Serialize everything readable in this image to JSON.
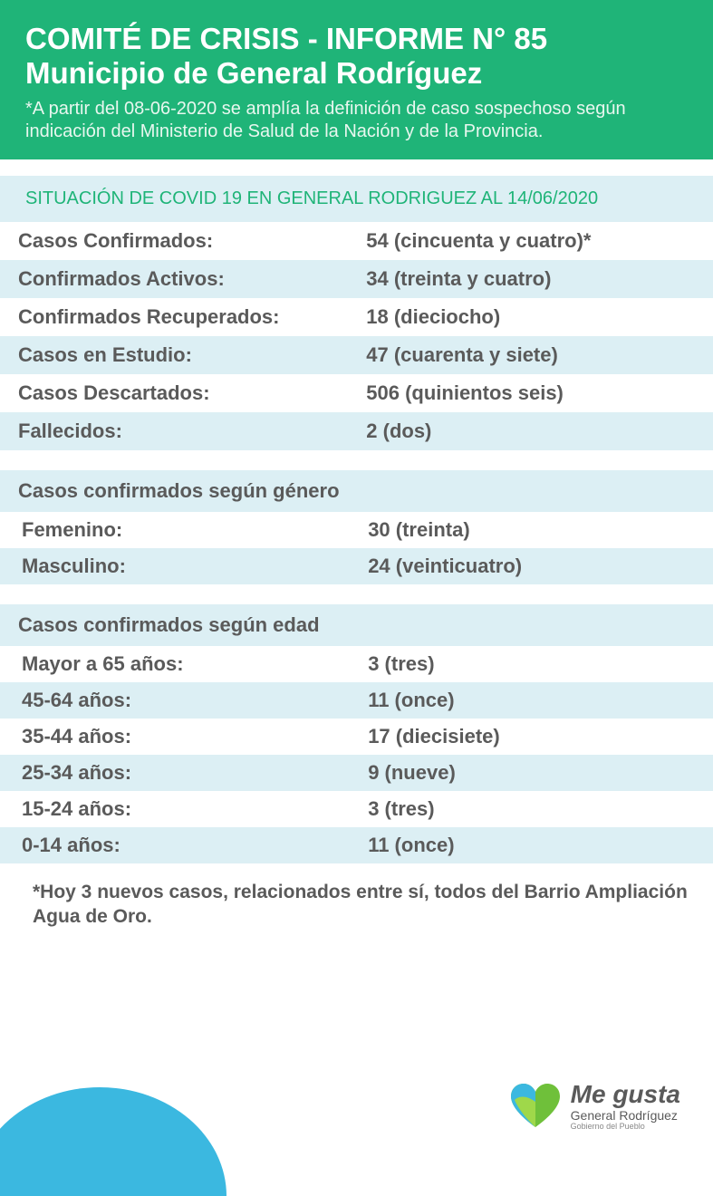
{
  "header": {
    "title_line1": "COMITÉ DE CRISIS - INFORME N° 85",
    "title_line2": "Municipio de General Rodríguez",
    "note": "*A partir del 08-06-2020 se amplía la definición de caso sospechoso según indicación del Ministerio de Salud de la Nación y de la Provincia."
  },
  "section_title": "SITUACIÓN DE COVID 19 EN GENERAL RODRIGUEZ AL 14/06/2020",
  "main_stats": [
    {
      "label": "Casos Confirmados:",
      "value": "54 (cincuenta y cuatro)*",
      "bg": "#ffffff"
    },
    {
      "label": "Confirmados Activos:",
      "value": "34 (treinta y cuatro)",
      "bg": "#dceff4"
    },
    {
      "label": "Confirmados Recuperados:",
      "value": "18 (dieciocho)",
      "bg": "#ffffff"
    },
    {
      "label": "Casos en Estudio:",
      "value": "47 (cuarenta y siete)",
      "bg": "#dceff4"
    },
    {
      "label": "Casos Descartados:",
      "value": "506 (quinientos seis)",
      "bg": "#ffffff"
    },
    {
      "label": "Fallecidos:",
      "value": "2 (dos)",
      "bg": "#dceff4"
    }
  ],
  "gender_title": "Casos confirmados según género",
  "gender_stats": [
    {
      "label": "Femenino:",
      "value": "30 (treinta)",
      "bg": "#ffffff"
    },
    {
      "label": "Masculino:",
      "value": "24 (veinticuatro)",
      "bg": "#dceff4"
    }
  ],
  "age_title": "Casos confirmados según edad",
  "age_stats": [
    {
      "label": "Mayor a 65 años:",
      "value": "3 (tres)",
      "bg": "#ffffff"
    },
    {
      "label": "45-64 años:",
      "value": "11 (once)",
      "bg": "#dceff4"
    },
    {
      "label": "35-44 años:",
      "value": "17 (diecisiete)",
      "bg": "#ffffff"
    },
    {
      "label": "25-34 años:",
      "value": "9 (nueve)",
      "bg": "#dceff4"
    },
    {
      "label": "15-24 años:",
      "value": "3 (tres)",
      "bg": "#ffffff"
    },
    {
      "label": "0-14 años:",
      "value": "11 (once)",
      "bg": "#dceff4"
    }
  ],
  "footnote": "*Hoy 3 nuevos casos, relacionados entre sí, todos del Barrio Ampliación Agua de Oro.",
  "logo": {
    "main": "Me gusta",
    "sub": "General Rodríguez",
    "tiny": "Gobierno del Pueblo"
  },
  "colors": {
    "header_bg": "#1fb478",
    "section_bg": "#dceff4",
    "text": "#5a5a5a",
    "blob": "#3bb8e0"
  }
}
